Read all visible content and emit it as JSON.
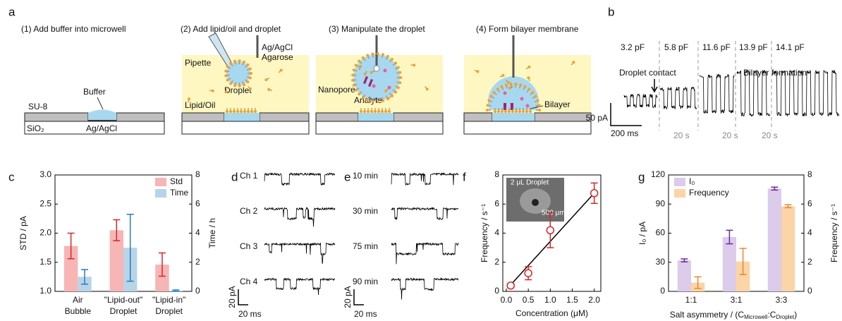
{
  "panel_labels": [
    "a",
    "b",
    "c",
    "d",
    "e",
    "f",
    "g"
  ],
  "schematic": {
    "steps": [
      "(1) Add buffer into microwell",
      "(2) Add lipid/oil and droplet",
      "(3) Manipulate the droplet",
      "(4) Form bilayer membrane"
    ],
    "labels": {
      "buffer": "Buffer",
      "su8": "SU-8",
      "sio2": "SiO₂",
      "electrode_bottom": "Ag/AgCl",
      "pipette": "Pipette",
      "electrode_top": [
        "Ag/AgCl",
        "Agarose"
      ],
      "droplet": "Droplet",
      "lipid_oil": "Lipid/Oil",
      "nanopore": "Nanopore",
      "analyte": "Analyte",
      "bilayer": "Bilayer"
    }
  },
  "capacitance_trace": {
    "capacitances": [
      "3.2 pF",
      "5.8 pF",
      "11.6 pF",
      "13.9 pF",
      "14.1 pF"
    ],
    "annotations": [
      "Droplet contact",
      "Bilayer formation"
    ],
    "scale_current": "50 pA",
    "scale_time": "200 ms",
    "time_gaps": [
      "20 s",
      "20 s",
      "20 s"
    ]
  },
  "channel_traces": {
    "labels": [
      "Ch 1",
      "Ch 2",
      "Ch 3",
      "Ch 4"
    ],
    "scale_current": "20 pA",
    "scale_time": "20 ms"
  },
  "time_traces": {
    "labels": [
      "10 min",
      "30 min",
      "75 min",
      "90 min"
    ],
    "scale_current": "20 pA",
    "scale_time": "20 ms"
  },
  "chart_data": [
    {
      "type": "bar",
      "ylabel": "STD / pA",
      "y2label": "Time / h",
      "categories": [
        "Air Bubble",
        "\"Lipid-out\" Droplet",
        "\"Lipid-in\" Droplet"
      ],
      "series": [
        {
          "name": "Std",
          "color": "#f7b5b5",
          "error_color": "#d62728",
          "values": [
            1.78,
            2.05,
            1.46
          ],
          "errors": [
            0.22,
            0.18,
            0.2
          ]
        },
        {
          "name": "Time",
          "color": "#b8d4e8",
          "error_color": "#2b7bba",
          "axis": "y2",
          "values": [
            1.0,
            3.0,
            0.05
          ],
          "errors": [
            0.5,
            2.3,
            0.05
          ]
        }
      ],
      "ylim": [
        1.0,
        3.0
      ],
      "yticks": [
        {
          "value": 1.0,
          "label": "1.0"
        },
        {
          "value": 1.5,
          "label": "1.5"
        },
        {
          "value": 2.0,
          "label": "2.0"
        },
        {
          "value": 2.5,
          "label": "2.5"
        },
        {
          "value": 3.0,
          "label": "3.0"
        }
      ],
      "y2lim": [
        0,
        8
      ],
      "y2ticks": [
        0,
        2,
        4,
        6,
        8
      ],
      "legend": "upper right"
    },
    {
      "type": "scatter",
      "xlabel": "Concentration (μM)",
      "ylabel": "Frequency / s⁻¹",
      "inset_labels": [
        "2 μL Droplet",
        "500 μm"
      ],
      "x": [
        0.1,
        0.5,
        1.0,
        2.0
      ],
      "series": [
        {
          "color": "#d62728",
          "values": [
            0.4,
            1.25,
            4.2,
            6.75
          ],
          "errors": [
            0.15,
            0.45,
            1.2,
            0.7
          ]
        }
      ],
      "fit": {
        "x": [
          0.1,
          2.0
        ],
        "y": [
          0.45,
          6.75
        ],
        "color": "#000000"
      },
      "xlim": [
        -0.08,
        2.15
      ],
      "xticks": [
        {
          "value": 0,
          "label": "0.0"
        },
        {
          "value": 0.5,
          "label": "0.5"
        },
        {
          "value": 1,
          "label": "1.0"
        },
        {
          "value": 1.5,
          "label": "1.5"
        },
        {
          "value": 2,
          "label": "2.0"
        }
      ],
      "ylim": [
        0,
        8
      ],
      "yticks": [
        0,
        2,
        4,
        6,
        8
      ]
    },
    {
      "type": "bar",
      "ylabel": "I₀ / pA",
      "y2label": "Frequency / s⁻¹",
      "xlabel": [
        "Salt asymmetry / (C",
        "Microwell",
        ":C",
        "Droplet",
        ")"
      ],
      "categories": [
        "1:1",
        "3:1",
        "3:3"
      ],
      "series": [
        {
          "name": "I₀",
          "color": "#dccbea",
          "error_color": "#6a2c91",
          "values": [
            32,
            56,
            106
          ],
          "errors": [
            1.5,
            7,
            1.5
          ]
        },
        {
          "name": "Frequency",
          "color": "#fcd4a6",
          "error_color": "#e8892a",
          "axis": "y2",
          "values": [
            0.6,
            2.05,
            5.85
          ],
          "errors": [
            0.4,
            0.9,
            0.1
          ]
        }
      ],
      "ylim": [
        0,
        120
      ],
      "yticks": [
        0,
        30,
        60,
        90,
        120
      ],
      "y2lim": [
        0,
        8
      ],
      "y2ticks": [
        0,
        2,
        4,
        6,
        8
      ],
      "legend": "upper left"
    }
  ]
}
